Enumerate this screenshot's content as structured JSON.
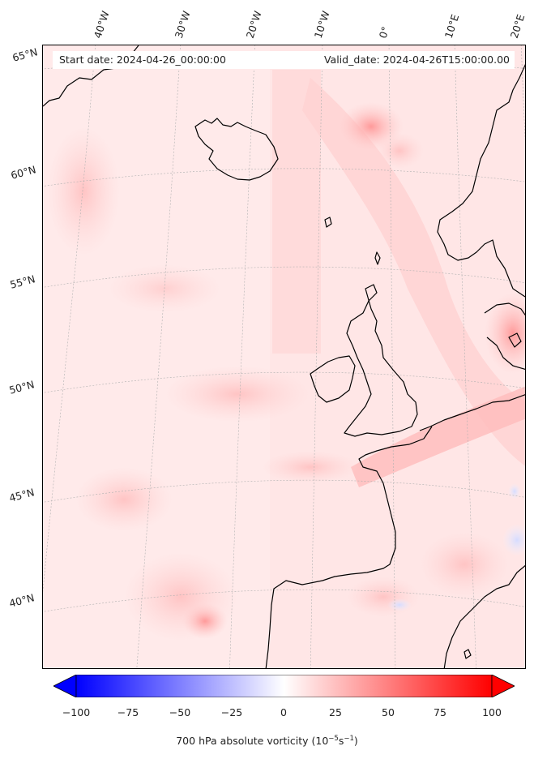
{
  "header": {
    "start_date": "Start date: 2024-04-26_00:00:00",
    "valid_date": "Valid_date: 2024-04-26T15:00:00.00"
  },
  "graticule": {
    "longitudes": [
      "40°W",
      "30°W",
      "20°W",
      "10°W",
      "0°",
      "10°E",
      "20°E"
    ],
    "latitudes": [
      "65°N",
      "60°N",
      "55°N",
      "50°N",
      "45°N",
      "40°N"
    ]
  },
  "colorbar": {
    "ticks": [
      "−100",
      "−75",
      "−50",
      "−25",
      "0",
      "25",
      "50",
      "75",
      "100"
    ],
    "range": [
      -100,
      100
    ],
    "colormap": "bwr",
    "extend": "both",
    "label_prefix": "700 hPa absolute vorticity (10",
    "label_exp1": "−5",
    "label_mid": "s",
    "label_exp2": "−1",
    "label_suffix": ")"
  },
  "colors": {
    "background_field": "#ffecec",
    "coastline": "#000000",
    "gridline": "#b0b0b0"
  }
}
